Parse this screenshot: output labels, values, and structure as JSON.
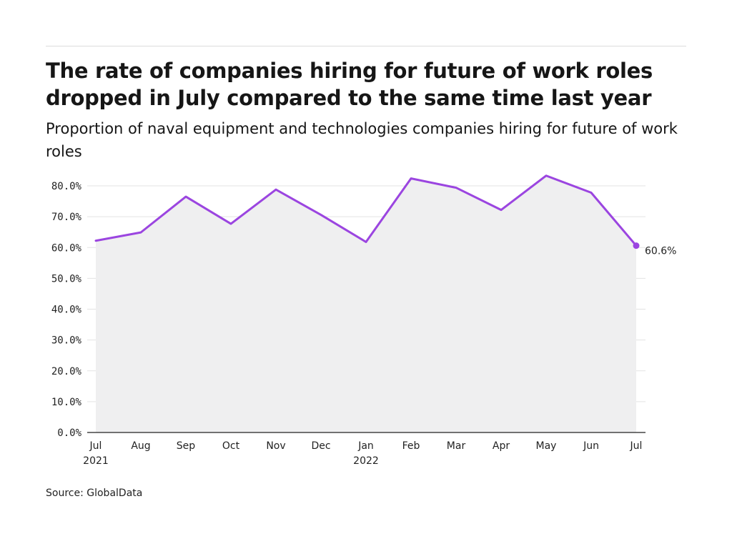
{
  "title": "The rate of companies hiring for future of work roles dropped in July compared to the same time last year",
  "subtitle": "Proportion of naval equipment and technologies companies hiring for future of work roles",
  "source": "Source: GlobalData",
  "colors": {
    "line": "#9b45e0",
    "area": "#efeff0",
    "grid": "#e3e3e3",
    "axis": "#222222"
  },
  "chart_data": {
    "type": "line",
    "title": "The rate of companies hiring for future of work roles dropped in July compared to the same time last year",
    "subtitle": "Proportion of naval equipment and technologies companies hiring for future of work roles",
    "xlabel": "",
    "ylabel": "",
    "x": [
      "Jul 2021",
      "Aug 2021",
      "Sep 2021",
      "Oct 2021",
      "Nov 2021",
      "Dec 2021",
      "Jan 2022",
      "Feb 2022",
      "Mar 2022",
      "Apr 2022",
      "May 2022",
      "Jun 2022",
      "Jul 2022"
    ],
    "x_tick_labels": [
      {
        "line1": "Jul",
        "line2": "2021"
      },
      {
        "line1": "Aug",
        "line2": ""
      },
      {
        "line1": "Sep",
        "line2": ""
      },
      {
        "line1": "Oct",
        "line2": ""
      },
      {
        "line1": "Nov",
        "line2": ""
      },
      {
        "line1": "Dec",
        "line2": ""
      },
      {
        "line1": "Jan",
        "line2": "2022"
      },
      {
        "line1": "Feb",
        "line2": ""
      },
      {
        "line1": "Mar",
        "line2": ""
      },
      {
        "line1": "Apr",
        "line2": ""
      },
      {
        "line1": "May",
        "line2": ""
      },
      {
        "line1": "Jun",
        "line2": ""
      },
      {
        "line1": "Jul",
        "line2": ""
      }
    ],
    "series": [
      {
        "values": [
          62.2,
          64.9,
          76.5,
          67.7,
          78.8,
          70.6,
          61.8,
          82.4,
          79.4,
          72.2,
          83.3,
          77.8,
          60.6
        ]
      }
    ],
    "ylim": [
      0,
      80
    ],
    "y_ticks": [
      0,
      10,
      20,
      30,
      40,
      50,
      60,
      70,
      80
    ],
    "y_tick_labels": [
      "0.0%",
      "10.0%",
      "20.0%",
      "30.0%",
      "40.0%",
      "50.0%",
      "60.0%",
      "70.0%",
      "80.0%"
    ],
    "end_label": "60.6%",
    "grid": true,
    "legend": "none"
  }
}
